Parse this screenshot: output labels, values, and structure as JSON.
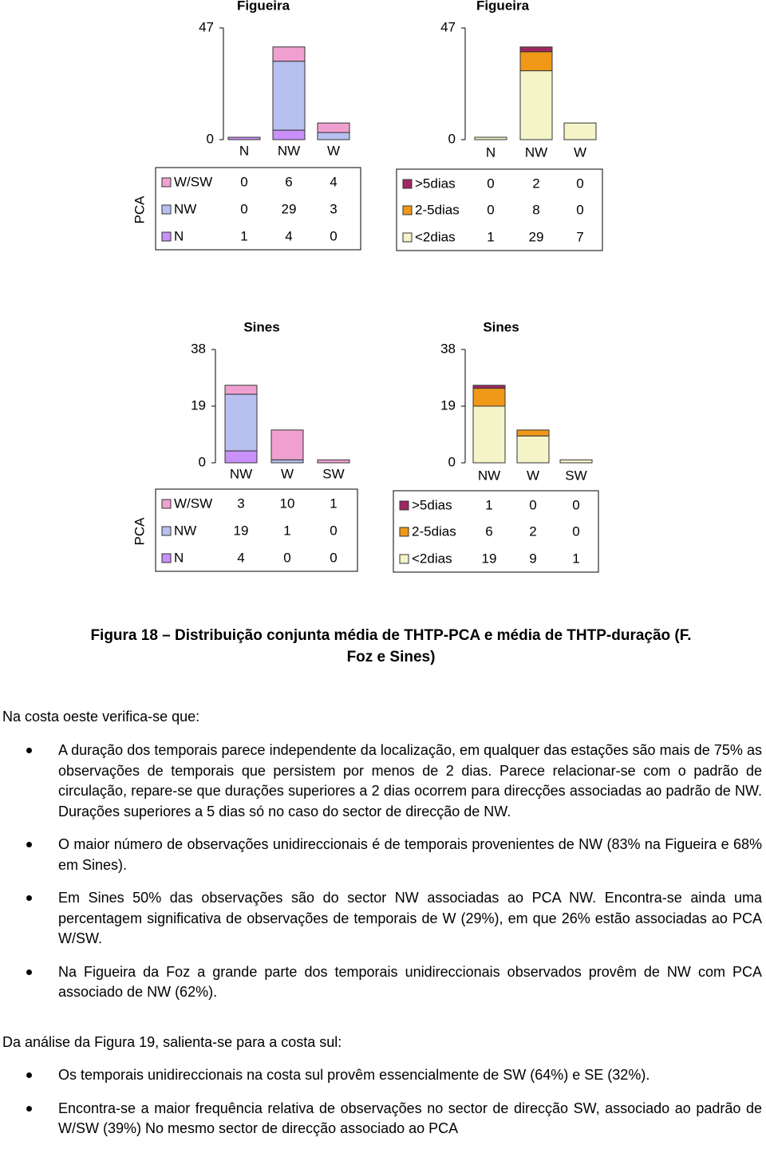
{
  "chart_data": [
    {
      "type": "bar",
      "stacked": true,
      "title": "Figueira",
      "table_label": "PCA",
      "categories": [
        "N",
        "NW",
        "W"
      ],
      "ylim": [
        0,
        47
      ],
      "yticks": [
        0,
        47
      ],
      "series": [
        {
          "name": "W/SW",
          "color": "#f0a0d0",
          "values": [
            0,
            6,
            4
          ]
        },
        {
          "name": "NW",
          "color": "#b8c0f0",
          "values": [
            0,
            29,
            3
          ]
        },
        {
          "name": "N",
          "color": "#c890f8",
          "values": [
            1,
            4,
            0
          ]
        }
      ]
    },
    {
      "type": "bar",
      "stacked": true,
      "title": "Figueira",
      "categories": [
        "N",
        "NW",
        "W"
      ],
      "ylim": [
        0,
        47
      ],
      "yticks": [
        0,
        47
      ],
      "series": [
        {
          "name": ">5dias",
          "color": "#a02860",
          "values": [
            0,
            2,
            0
          ]
        },
        {
          "name": "2-5dias",
          "color": "#f09818",
          "values": [
            0,
            8,
            0
          ]
        },
        {
          "name": "<2dias",
          "color": "#f4f4c8",
          "values": [
            1,
            29,
            7
          ]
        }
      ]
    },
    {
      "type": "bar",
      "stacked": true,
      "title": "Sines",
      "table_label": "PCA",
      "categories": [
        "NW",
        "W",
        "SW"
      ],
      "ylim": [
        0,
        38
      ],
      "yticks": [
        0,
        19,
        38
      ],
      "series": [
        {
          "name": "W/SW",
          "color": "#f0a0d0",
          "values": [
            3,
            10,
            1
          ]
        },
        {
          "name": "NW",
          "color": "#b8c0f0",
          "values": [
            19,
            1,
            0
          ]
        },
        {
          "name": "N",
          "color": "#c890f8",
          "values": [
            4,
            0,
            0
          ]
        }
      ]
    },
    {
      "type": "bar",
      "stacked": true,
      "title": "Sines",
      "categories": [
        "NW",
        "W",
        "SW"
      ],
      "ylim": [
        0,
        38
      ],
      "yticks": [
        0,
        19,
        38
      ],
      "series": [
        {
          "name": ">5dias",
          "color": "#a02860",
          "values": [
            1,
            0,
            0
          ]
        },
        {
          "name": "2-5dias",
          "color": "#f09818",
          "values": [
            6,
            2,
            0
          ]
        },
        {
          "name": "<2dias",
          "color": "#f4f4c8",
          "values": [
            19,
            9,
            1
          ]
        }
      ]
    }
  ],
  "caption": "Figura 18 – Distribuição conjunta média de THTP-PCA e média de THTP-duração (F. Foz e Sines)",
  "sections": [
    {
      "intro": "Na costa oeste verifica-se que:",
      "bullets": [
        "A duração dos temporais parece independente da localização, em qualquer das estações são mais de 75% as observações de temporais que persistem por menos de 2 dias. Parece relacionar-se com o padrão de circulação, repare-se que durações superiores a 2 dias ocorrem para direcções associadas ao padrão de NW. Durações superiores a 5 dias só no caso do sector de direcção de NW.",
        "O maior número de observações unidireccionais é de temporais provenientes de NW (83% na Figueira e 68% em Sines).",
        "Em Sines 50% das observações são do sector NW associadas ao PCA NW. Encontra-se ainda uma percentagem significativa de observações de temporais de W (29%), em que 26% estão associadas ao PCA W/SW.",
        "Na Figueira da Foz a grande parte dos temporais unidireccionais observados provêm de NW com PCA associado de NW (62%)."
      ]
    },
    {
      "intro": "Da análise da Figura 19, salienta-se para a costa sul:",
      "bullets": [
        "Os temporais unidireccionais na costa sul provêm essencialmente de SW (64%) e SE (32%).",
        "Encontra-se a maior frequência relativa de observações no sector de direcção SW, associado ao padrão de W/SW (39%) No mesmo sector de direcção associado ao PCA"
      ]
    }
  ]
}
